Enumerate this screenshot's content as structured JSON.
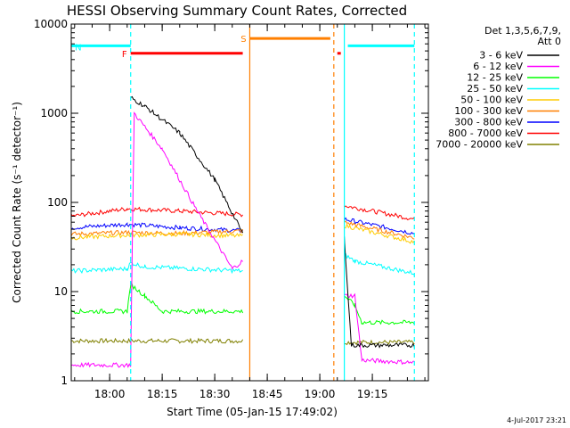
{
  "chart_data": {
    "type": "line",
    "title": "HESSI Observing Summary Count Rates, Corrected",
    "xlabel": "Start Time (05-Jan-15 17:49:02)",
    "ylabel": "Corrected Count Rate (s⁻¹ detector⁻¹)",
    "y_scale": "log",
    "ylim": [
      1,
      10000
    ],
    "xlim": [
      "17:49:02",
      "19:31:00"
    ],
    "x_ticks": [
      "18:00",
      "18:15",
      "18:30",
      "18:45",
      "19:00",
      "19:15"
    ],
    "y_ticks": [
      "1",
      "10",
      "100",
      "1000",
      "10000"
    ],
    "legend_header": [
      "Det 1,3,5,6,7,9,",
      "Att 0"
    ],
    "legend_position": "right",
    "timestamp": "4-Jul-2017 23:21",
    "flags": [
      {
        "label": "N",
        "color": "#00ffff",
        "level": 5700,
        "segments": [
          [
            "17:49",
            "18:06"
          ],
          [
            "19:08",
            "19:27"
          ]
        ]
      },
      {
        "label": "F",
        "color": "#ff0000",
        "level": 4700,
        "segments": [
          [
            "18:06",
            "18:38"
          ],
          [
            "19:05",
            "19:06"
          ]
        ]
      },
      {
        "label": "S",
        "color": "#ff7f00",
        "level": 6900,
        "segments": [
          [
            "18:40",
            "19:03"
          ]
        ]
      }
    ],
    "vlines": [
      {
        "t": "18:06",
        "color": "#00ffff",
        "style": "dashed"
      },
      {
        "t": "19:07",
        "color": "#00ffff",
        "style": "solid"
      },
      {
        "t": "19:27",
        "color": "#00ffff",
        "style": "dashed"
      },
      {
        "t": "18:40",
        "color": "#ff7f00",
        "style": "solid"
      },
      {
        "t": "19:04",
        "color": "#ff7f00",
        "style": "dashed"
      }
    ],
    "series": [
      {
        "name": "3 - 6 keV",
        "color": "#000000",
        "segments": [
          [
            [
              "18:06",
              1500
            ],
            [
              "18:10",
              1200
            ],
            [
              "18:20",
              600
            ],
            [
              "18:30",
              180
            ],
            [
              "18:34",
              90
            ],
            [
              "18:38",
              45
            ]
          ],
          [
            [
              "19:07",
              40
            ],
            [
              "19:09",
              2.5
            ],
            [
              "19:27",
              2.5
            ]
          ]
        ]
      },
      {
        "name": "6 - 12 keV",
        "color": "#ff00ff",
        "segments": [
          [
            [
              "17:49",
              1.5
            ],
            [
              "18:06",
              1.5
            ],
            [
              "18:07",
              1000
            ],
            [
              "18:15",
              400
            ],
            [
              "18:25",
              80
            ],
            [
              "18:35",
              18
            ],
            [
              "18:38",
              22
            ]
          ],
          [
            [
              "19:07",
              9
            ],
            [
              "19:10",
              9
            ],
            [
              "19:12",
              1.7
            ],
            [
              "19:27",
              1.6
            ]
          ]
        ]
      },
      {
        "name": "12 - 25 keV",
        "color": "#00ff00",
        "segments": [
          [
            [
              "17:49",
              6
            ],
            [
              "18:05",
              6
            ],
            [
              "18:06",
              12
            ],
            [
              "18:10",
              9
            ],
            [
              "18:15",
              6
            ],
            [
              "18:38",
              6
            ]
          ],
          [
            [
              "19:07",
              9
            ],
            [
              "19:10",
              7
            ],
            [
              "19:12",
              4.5
            ],
            [
              "19:27",
              4.5
            ]
          ]
        ]
      },
      {
        "name": "25 - 50 keV",
        "color": "#00ffff",
        "segments": [
          [
            [
              "17:49",
              17
            ],
            [
              "18:05",
              18
            ],
            [
              "18:06",
              21
            ],
            [
              "18:10",
              19
            ],
            [
              "18:38",
              17
            ]
          ],
          [
            [
              "19:07",
              26
            ],
            [
              "19:10",
              22
            ],
            [
              "19:27",
              16
            ]
          ]
        ]
      },
      {
        "name": "50 - 100 keV",
        "color": "#ffcc00",
        "segments": [
          [
            [
              "17:49",
              40
            ],
            [
              "18:05",
              43
            ],
            [
              "18:20",
              44
            ],
            [
              "18:38",
              42
            ]
          ],
          [
            [
              "19:07",
              55
            ],
            [
              "19:27",
              36
            ]
          ]
        ]
      },
      {
        "name": "100 - 300 keV",
        "color": "#ff7f00",
        "segments": [
          [
            [
              "17:49",
              44
            ],
            [
              "18:05",
              46
            ],
            [
              "18:20",
              45
            ],
            [
              "18:38",
              48
            ]
          ],
          [
            [
              "19:07",
              60
            ],
            [
              "19:27",
              40
            ]
          ]
        ]
      },
      {
        "name": "300 - 800 keV",
        "color": "#0000ff",
        "segments": [
          [
            [
              "17:49",
              52
            ],
            [
              "18:05",
              57
            ],
            [
              "18:20",
              52
            ],
            [
              "18:38",
              48
            ]
          ],
          [
            [
              "19:07",
              65
            ],
            [
              "19:27",
              45
            ]
          ]
        ]
      },
      {
        "name": "800 - 7000 keV",
        "color": "#ff0000",
        "segments": [
          [
            [
              "17:49",
              70
            ],
            [
              "18:05",
              85
            ],
            [
              "18:20",
              80
            ],
            [
              "18:38",
              73
            ]
          ],
          [
            [
              "19:07",
              92
            ],
            [
              "19:27",
              65
            ]
          ]
        ]
      },
      {
        "name": "7000 - 20000 keV",
        "color": "#808000",
        "segments": [
          [
            [
              "17:49",
              2.8
            ],
            [
              "18:38",
              2.8
            ]
          ],
          [
            [
              "19:07",
              2.7
            ],
            [
              "19:27",
              2.7
            ]
          ]
        ]
      }
    ]
  }
}
